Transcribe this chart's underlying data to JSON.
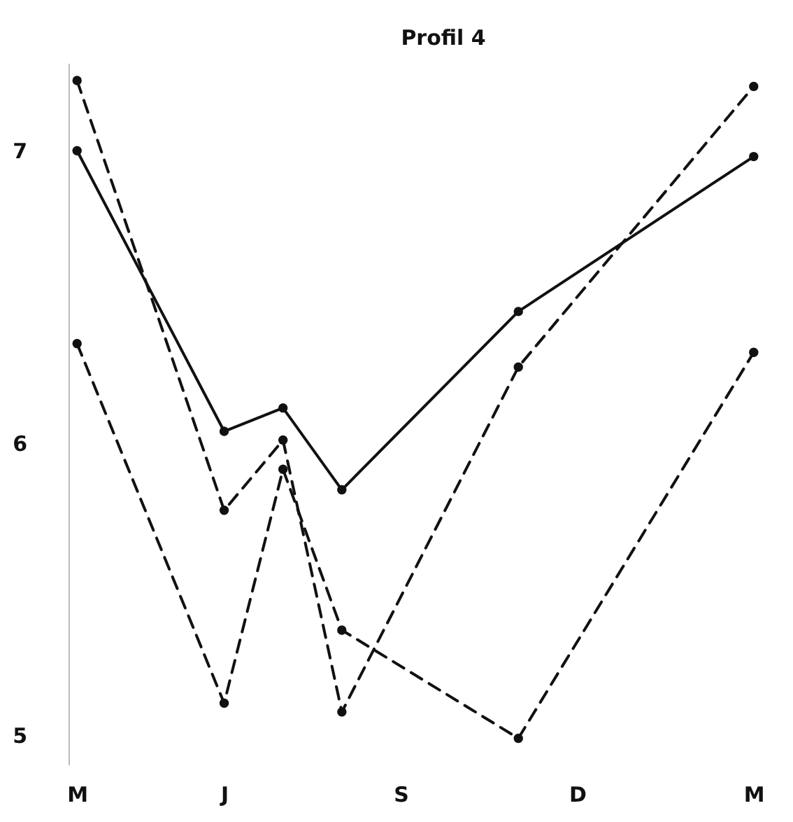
{
  "chart_data": {
    "type": "line",
    "title": "Profil 4",
    "categories": [
      "M",
      null,
      null,
      null,
      null,
      "J",
      null,
      null,
      null,
      null,
      null,
      "S",
      null,
      null,
      null,
      null,
      null,
      "D",
      null,
      null,
      null,
      null,
      null,
      "M"
    ],
    "series": [
      {
        "color": "#111111",
        "line_style": "solid",
        "values": [
          7.0,
          null,
          null,
          null,
          null,
          6.04,
          null,
          6.12,
          null,
          5.84,
          null,
          null,
          null,
          null,
          null,
          6.45,
          null,
          null,
          null,
          null,
          null,
          null,
          null,
          6.98
        ]
      },
      {
        "color": "#111111",
        "line_style": "dashed",
        "values": [
          7.24,
          null,
          null,
          null,
          null,
          5.77,
          null,
          6.01,
          null,
          5.08,
          null,
          null,
          null,
          null,
          null,
          6.26,
          null,
          null,
          null,
          null,
          null,
          null,
          null,
          7.22
        ]
      },
      {
        "color": "#111111",
        "line_style": "dashed",
        "values": [
          6.34,
          null,
          null,
          null,
          null,
          5.11,
          null,
          5.91,
          null,
          5.36,
          null,
          null,
          null,
          null,
          null,
          4.99,
          null,
          null,
          null,
          null,
          null,
          null,
          null,
          6.31
        ]
      }
    ],
    "ylim": [
      4.9,
      7.3
    ],
    "yticks": [
      5,
      6,
      7
    ],
    "marker": "circle"
  }
}
